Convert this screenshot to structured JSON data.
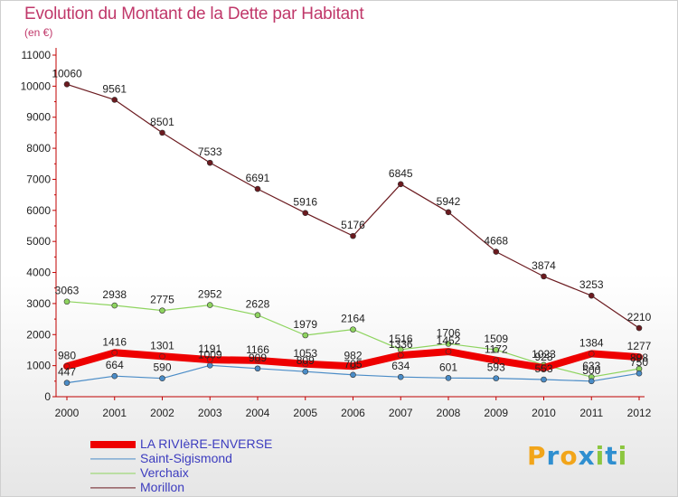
{
  "title": "Evolution du Montant de la Dette par Habitant",
  "subtitle": "(en €)",
  "logo": {
    "text": "Proxiti",
    "colors": [
      "#f2a51a",
      "#2f8fd0",
      "#f2a51a",
      "#2f8fd0",
      "#8cc63f",
      "#2f8fd0",
      "#8cc63f"
    ]
  },
  "chart_data": {
    "type": "line",
    "title": "Evolution du Montant de la Dette par Habitant",
    "ylabel": "(en €)",
    "x": [
      "2000",
      "2001",
      "2002",
      "2003",
      "2004",
      "2005",
      "2006",
      "2007",
      "2008",
      "2009",
      "2010",
      "2011",
      "2012"
    ],
    "ylim": [
      0,
      11000
    ],
    "yticks": [
      0,
      1000,
      2000,
      3000,
      4000,
      5000,
      6000,
      7000,
      8000,
      9000,
      10000,
      11000
    ],
    "grid": false,
    "legend": "bottom-left",
    "series": [
      {
        "name": "Morillon",
        "color": "#6b1a1f",
        "marker": "#6b1a1f",
        "width": 1.2,
        "values": [
          10060,
          9561,
          8501,
          7533,
          6691,
          5916,
          5176,
          6845,
          5942,
          4668,
          3874,
          3253,
          2210
        ]
      },
      {
        "name": "Verchaix",
        "color": "#8ed45f",
        "marker": "#8ed45f",
        "width": 1.2,
        "values": [
          3063,
          2938,
          2775,
          2952,
          2628,
          1979,
          2164,
          1516,
          1706,
          1509,
          1023,
          633,
          898
        ]
      },
      {
        "name": "Saint-Sigismond",
        "color": "#4a8cc7",
        "marker": "#4a8cc7",
        "width": 1.2,
        "values": [
          447,
          664,
          590,
          1009,
          909,
          809,
          705,
          634,
          601,
          593,
          553,
          500,
          750
        ]
      },
      {
        "name": "LA RIVIèRE-ENVERSE",
        "color": "#ee0000",
        "marker": "#ee0000",
        "width": 8,
        "values": [
          980,
          1416,
          1301,
          1191,
          1166,
          1053,
          982,
          1336,
          1452,
          1172,
          928,
          1384,
          1277
        ]
      }
    ],
    "legend_order": [
      "LA RIVIèRE-ENVERSE",
      "Saint-Sigismond",
      "Verchaix",
      "Morillon"
    ]
  }
}
